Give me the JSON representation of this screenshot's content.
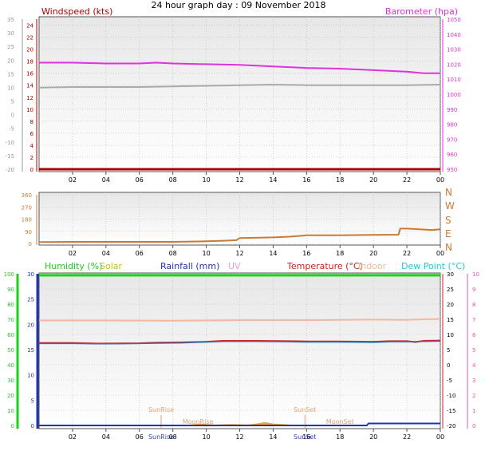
{
  "page_title": "24 hour graph day : 09 November 2018",
  "colors": {
    "windspeed": "#aa0000",
    "barometer": "#dd33dd",
    "gray_line": "#aaaaaa",
    "wind_direction": "#cc7a33",
    "humidity": "#22cc22",
    "solar": "#bbbb33",
    "rainfall": "#2233bb",
    "uv": "#ee99dd",
    "temperature": "#cc2222",
    "indoor": "#f2b9a0",
    "dew_point": "#22cccc",
    "dew_point_axis": "#ee55aa",
    "sun_event": "#e8a070",
    "moon_event": "#e8a070",
    "solar_fill": "#f0a830"
  },
  "chart_data": [
    {
      "type": "line",
      "panel": "top",
      "left_axis_label": "Windspeed (kts)",
      "right_axis_label": "Barometer (hpa)",
      "x_ticks": [
        "02",
        "04",
        "06",
        "08",
        "10",
        "12",
        "14",
        "16",
        "18",
        "20",
        "22",
        "00"
      ],
      "x_range": [
        0,
        24
      ],
      "left_outer_ticks": [
        "35",
        "30",
        "25",
        "20",
        "15",
        "10",
        "5",
        "0",
        "-5",
        "-10",
        "-15",
        "-20"
      ],
      "left_outer_range": [
        -20,
        35
      ],
      "left_ticks": [
        "24",
        "22",
        "20",
        "18",
        "16",
        "14",
        "12",
        "10",
        "8",
        "6",
        "4",
        "2",
        "0"
      ],
      "left_range": [
        0,
        25
      ],
      "right_ticks": [
        "1050",
        "1040",
        "1030",
        "1020",
        "1010",
        "1000",
        "990",
        "980",
        "970",
        "960",
        "950"
      ],
      "right_range": [
        950,
        1050
      ],
      "grid": true,
      "series": [
        {
          "label": "Barometer",
          "axis": "right",
          "x": [
            0,
            2,
            4,
            6,
            7,
            8,
            10,
            12,
            14,
            16,
            18,
            20,
            22,
            23,
            24
          ],
          "y": [
            1021,
            1021,
            1020.5,
            1020.5,
            1021,
            1020.5,
            1020,
            1019.5,
            1018.5,
            1017.5,
            1017,
            1016,
            1015,
            1014,
            1014
          ]
        },
        {
          "label": "Gray line",
          "axis": "left",
          "x": [
            0,
            2,
            4,
            6,
            8,
            10,
            12,
            14,
            16,
            18,
            20,
            22,
            24
          ],
          "y": [
            13.6,
            13.7,
            13.7,
            13.7,
            13.8,
            13.9,
            14.0,
            14.1,
            14.0,
            14.0,
            14.0,
            14.0,
            14.1
          ]
        },
        {
          "label": "Windspeed",
          "axis": "left",
          "x": [
            0,
            24
          ],
          "y": [
            0,
            0
          ]
        }
      ]
    },
    {
      "type": "line",
      "panel": "middle",
      "x_ticks": [
        "02",
        "04",
        "06",
        "08",
        "10",
        "12",
        "14",
        "16",
        "18",
        "20",
        "22",
        "00"
      ],
      "x_range": [
        0,
        24
      ],
      "left_ticks": [
        "360",
        "270",
        "180",
        "90",
        "0"
      ],
      "left_range": [
        0,
        360
      ],
      "right_labels": [
        "N",
        "W",
        "S",
        "E",
        "N"
      ],
      "grid": true,
      "series": [
        {
          "label": "Wind direction",
          "x": [
            0,
            2,
            4,
            6,
            8,
            10,
            11,
            11.8,
            12,
            14,
            15,
            16,
            18,
            20,
            21.5,
            21.6,
            22,
            23.5,
            24
          ],
          "y": [
            10,
            12,
            12,
            12,
            12,
            16,
            20,
            24,
            40,
            45,
            50,
            60,
            60,
            63,
            65,
            110,
            110,
            100,
            105
          ]
        }
      ]
    },
    {
      "type": "line",
      "panel": "bottom",
      "legend": [
        "Humidity (%)",
        "Solar",
        "Rainfall (mm)",
        "UV",
        "Temperature (°C)",
        "Indoor",
        "Dew Point (°C)"
      ],
      "x_ticks": [
        "02",
        "04",
        "06",
        "08",
        "10",
        "12",
        "14",
        "16",
        "18",
        "20",
        "22",
        "00"
      ],
      "x_range": [
        0,
        24
      ],
      "humidity_ticks": [
        "100",
        "90",
        "80",
        "70",
        "60",
        "50",
        "40",
        "30",
        "20",
        "10",
        "0"
      ],
      "humidity_range": [
        0,
        100
      ],
      "rain_ticks": [
        "30",
        "25",
        "20",
        "15",
        "10",
        "5",
        "0"
      ],
      "rain_range": [
        0,
        30
      ],
      "temp_ticks": [
        "30",
        "25",
        "20",
        "15",
        "10",
        "5",
        "0",
        "-5",
        "-10",
        "-15",
        "-20"
      ],
      "temp_range": [
        -20,
        30
      ],
      "uv_ticks": [
        "10",
        "9",
        "8",
        "7",
        "6",
        "5",
        "4",
        "3",
        "2",
        "1",
        "0"
      ],
      "uv_range": [
        0,
        10
      ],
      "grid": true,
      "series": [
        {
          "label": "Humidity",
          "axis": "humidity",
          "x": [
            0,
            24
          ],
          "y": [
            99,
            99
          ]
        },
        {
          "label": "Indoor",
          "axis": "temp",
          "x": [
            0,
            4,
            8,
            10,
            12,
            14,
            16,
            18,
            20,
            22,
            23,
            24
          ],
          "y": [
            14.6,
            14.6,
            14.5,
            14.6,
            14.7,
            14.7,
            14.7,
            14.8,
            14.9,
            14.8,
            15.0,
            15.1
          ]
        },
        {
          "label": "Temperature",
          "axis": "temp",
          "x": [
            0,
            2,
            3.5,
            6,
            7,
            8.5,
            10,
            11,
            13,
            15,
            16,
            18,
            20,
            21,
            22,
            22.5,
            23,
            24
          ],
          "y": [
            7.2,
            7.2,
            7.0,
            7.1,
            7.3,
            7.4,
            7.6,
            7.9,
            7.9,
            7.8,
            7.7,
            7.7,
            7.6,
            7.8,
            7.8,
            7.5,
            7.9,
            8.0
          ]
        },
        {
          "label": "Dew Point",
          "axis": "temp",
          "x": [
            0,
            2,
            3.5,
            6,
            7,
            8.5,
            10,
            11,
            13,
            15,
            16,
            18,
            20,
            21,
            22,
            24
          ],
          "y": [
            7.0,
            7.0,
            6.9,
            7.0,
            7.1,
            7.2,
            7.5,
            7.7,
            7.7,
            7.6,
            7.5,
            7.5,
            7.4,
            7.6,
            7.6,
            7.8
          ]
        },
        {
          "label": "Rainfall",
          "axis": "rain",
          "x": [
            0,
            19.6,
            19.7,
            24
          ],
          "y": [
            0,
            0,
            0.4,
            0.4
          ]
        }
      ],
      "solar_area": {
        "x": [
          7.5,
          9,
          9.7,
          10.5,
          11.5,
          12.5,
          13,
          13.5,
          14,
          15,
          16.5
        ],
        "y": [
          0,
          0.1,
          0.3,
          0.1,
          0.2,
          0.1,
          0.3,
          0.6,
          0.3,
          0.1,
          0
        ]
      },
      "events": [
        {
          "label": "SunRise",
          "x": 7.3
        },
        {
          "label": "SunSet",
          "x": 15.9
        },
        {
          "label": "MoonRise",
          "x": 9.5
        },
        {
          "label": "MoonSet",
          "x": 18.0
        }
      ]
    }
  ]
}
